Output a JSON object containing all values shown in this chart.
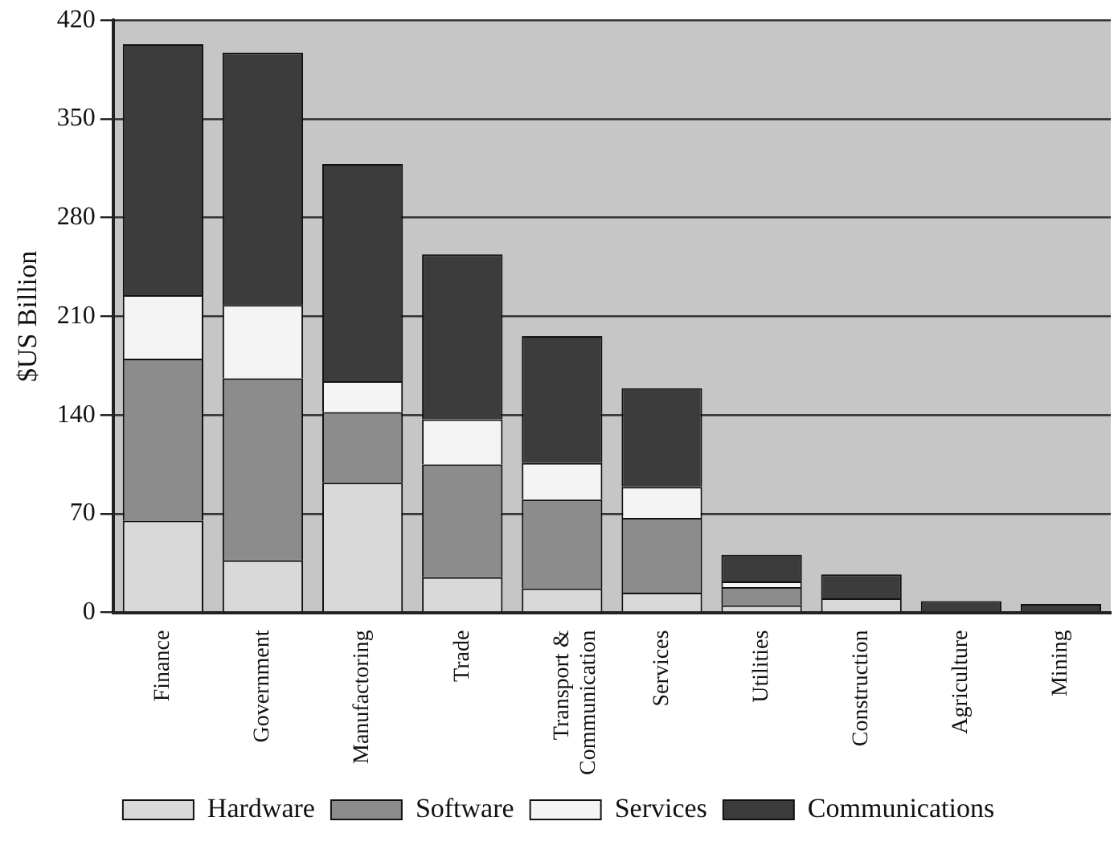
{
  "chart_data": {
    "type": "bar",
    "stacked": true,
    "ylabel": "$US Billion",
    "categories": [
      "Finance",
      "Government",
      "Manufactoring",
      "Trade",
      "Transport & Communication",
      "Services",
      "Utilities",
      "Construction",
      "Agriculture",
      "Mining"
    ],
    "series": [
      {
        "name": "Hardware",
        "color": "#d9d9d9",
        "values": [
          65,
          37,
          92,
          25,
          17,
          14,
          5,
          10,
          null,
          null
        ]
      },
      {
        "name": "Software",
        "color": "#8c8c8c",
        "values": [
          115,
          129,
          50,
          80,
          63,
          53,
          13,
          0,
          0,
          0
        ]
      },
      {
        "name": "Services",
        "color": "#f4f4f4",
        "values": [
          45,
          52,
          22,
          32,
          26,
          22,
          4,
          0,
          0,
          0
        ]
      },
      {
        "name": "Communications",
        "color": "#3c3c3c",
        "values": [
          178,
          179,
          154,
          117,
          90,
          70,
          19,
          17,
          8,
          6
        ]
      }
    ],
    "ylim": [
      0,
      420
    ],
    "yticks": [
      0,
      70,
      140,
      210,
      280,
      350,
      420
    ],
    "grid": "y",
    "legend": "bottom"
  }
}
